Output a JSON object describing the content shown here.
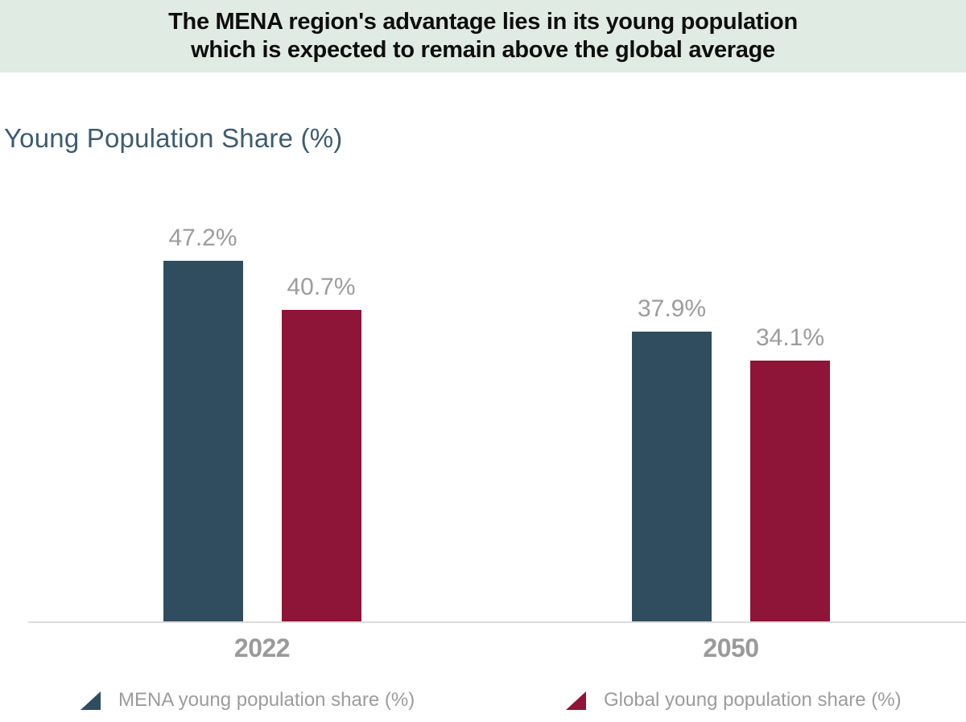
{
  "header": {
    "title_line1": "The MENA region's advantage lies in its young population",
    "title_line2": "which is expected to remain above the global average"
  },
  "chart_data": {
    "type": "bar",
    "title": "Young Population Share (%)",
    "categories": [
      "2022",
      "2050"
    ],
    "series": [
      {
        "name": "MENA young population share (%)",
        "color": "#2f4d5f",
        "values": [
          47.2,
          37.9
        ]
      },
      {
        "name": "Global young population share (%)",
        "color": "#8e1538",
        "values": [
          40.7,
          34.1
        ]
      }
    ],
    "data_labels": [
      "47.2%",
      "40.7%",
      "37.9%",
      "34.1%"
    ],
    "value_suffix": "%",
    "ylim": [
      0,
      50
    ],
    "grid": false,
    "y_axis_visible": false,
    "legend_position": "bottom"
  },
  "colors": {
    "header_bg": "#e0ebe3",
    "header_text": "#0e0e0e",
    "chart_title": "#3d5c70",
    "mena_bar": "#2f4d5f",
    "global_bar": "#8e1538",
    "label_gray": "#9c9c9c",
    "axis_tick_gray": "#9a9a9a",
    "axis_line": "#dcdcdc",
    "page_bg": "#ffffff"
  }
}
